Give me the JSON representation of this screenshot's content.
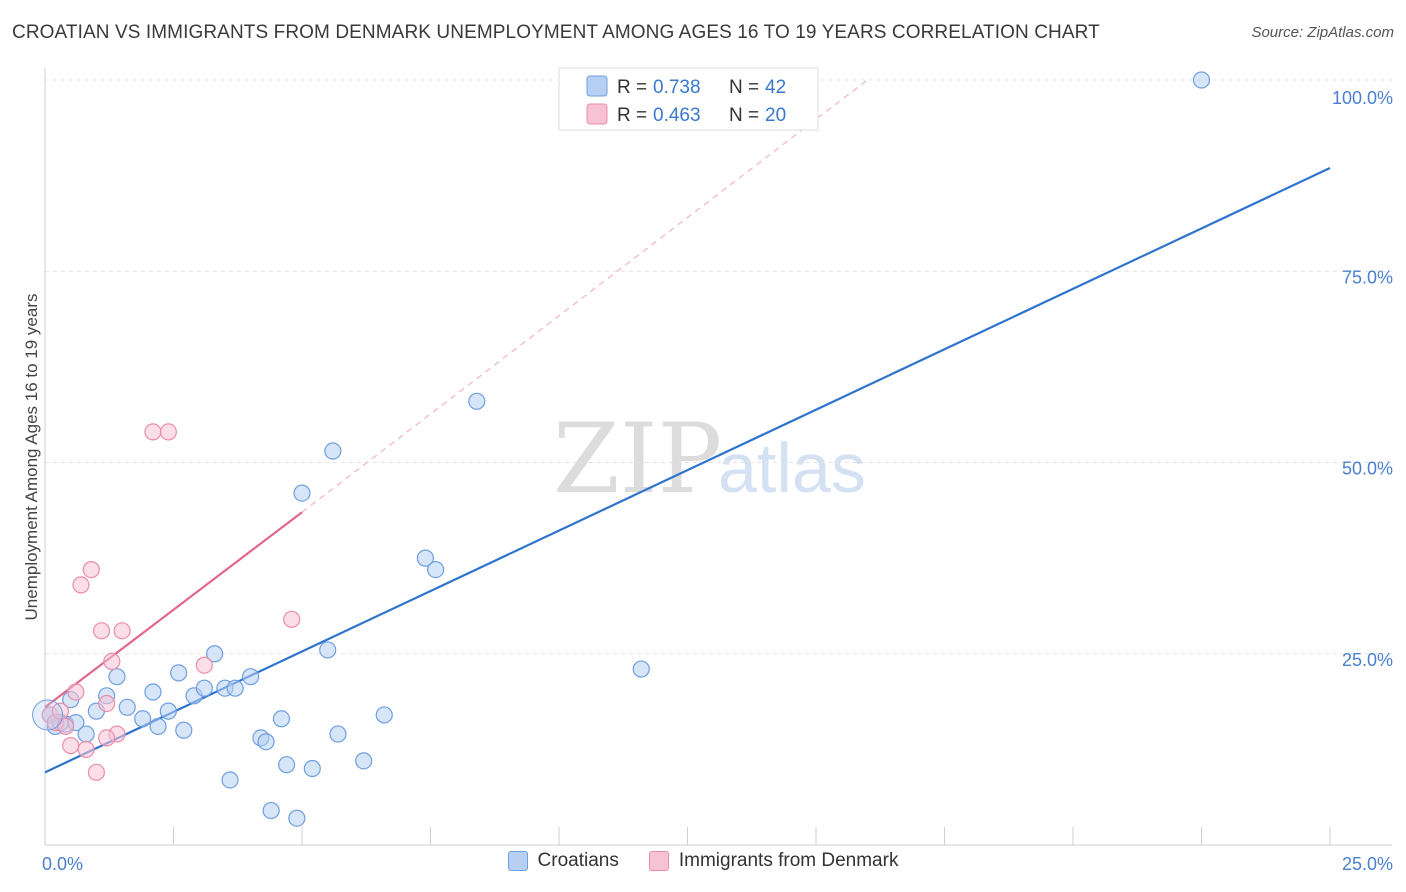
{
  "title": "CROATIAN VS IMMIGRANTS FROM DENMARK UNEMPLOYMENT AMONG AGES 16 TO 19 YEARS CORRELATION CHART",
  "source": "Source: ZipAtlas.com",
  "watermark": {
    "zip": "ZIP",
    "atlas": "atlas"
  },
  "legend": {
    "r_label": "R =",
    "n_label": "N =",
    "rows": [
      {
        "r": "0.738",
        "n": "42"
      },
      {
        "r": "0.463",
        "n": "20"
      }
    ]
  },
  "colors": {
    "croatians_fill": "#b7cff2",
    "croatians_stroke": "#6e9fe0",
    "croatians_line": "#2e74cf",
    "denmark_fill": "#f7c2d3",
    "denmark_stroke": "#eb8cab",
    "denmark_line": "#e2668f"
  },
  "chart_data": {
    "type": "scatter",
    "title": "CROATIAN VS IMMIGRANTS FROM DENMARK UNEMPLOYMENT AMONG AGES 16 TO 19 YEARS CORRELATION CHART",
    "xlabel": "",
    "ylabel": "Unemployment Among Ages 16 to 19 years",
    "xlim": [
      0,
      25
    ],
    "ylim": [
      0,
      100
    ],
    "x_tick_labels": [
      "0.0%",
      "25.0%"
    ],
    "y_tick_labels": [
      "25.0%",
      "50.0%",
      "75.0%",
      "100.0%"
    ],
    "y_ticks": [
      25,
      50,
      75,
      100
    ],
    "series": [
      {
        "name": "Croatians",
        "r": 0.738,
        "n": 42,
        "points": [
          [
            0.1,
            17.0
          ],
          [
            0.2,
            15.5
          ],
          [
            0.4,
            15.8
          ],
          [
            0.5,
            19.0
          ],
          [
            0.6,
            16.0
          ],
          [
            0.8,
            14.5
          ],
          [
            1.0,
            17.5
          ],
          [
            1.2,
            19.5
          ],
          [
            1.4,
            22.0
          ],
          [
            1.6,
            18.0
          ],
          [
            1.9,
            16.5
          ],
          [
            2.1,
            20.0
          ],
          [
            2.2,
            15.5
          ],
          [
            2.4,
            17.5
          ],
          [
            2.6,
            22.5
          ],
          [
            2.7,
            15.0
          ],
          [
            2.9,
            19.5
          ],
          [
            3.1,
            20.5
          ],
          [
            3.3,
            25.0
          ],
          [
            3.5,
            20.5
          ],
          [
            3.6,
            8.5
          ],
          [
            3.7,
            20.5
          ],
          [
            4.0,
            22.0
          ],
          [
            4.2,
            14.0
          ],
          [
            4.3,
            13.5
          ],
          [
            4.4,
            4.5
          ],
          [
            4.6,
            16.5
          ],
          [
            4.7,
            10.5
          ],
          [
            4.9,
            3.5
          ],
          [
            5.0,
            46.0
          ],
          [
            5.2,
            10.0
          ],
          [
            5.5,
            25.5
          ],
          [
            5.6,
            51.5
          ],
          [
            5.7,
            14.5
          ],
          [
            6.2,
            11.0
          ],
          [
            6.6,
            17.0
          ],
          [
            7.4,
            37.5
          ],
          [
            7.6,
            36.0
          ],
          [
            8.4,
            58.0
          ],
          [
            11.6,
            23.0
          ],
          [
            22.5,
            100.0
          ],
          [
            0.3,
            16.0
          ]
        ],
        "trend": {
          "x": [
            0,
            25
          ],
          "y": [
            9.5,
            88.5
          ]
        }
      },
      {
        "name": "Immigrants from Denmark",
        "r": 0.463,
        "n": 20,
        "points": [
          [
            0.1,
            17.0
          ],
          [
            0.2,
            16.0
          ],
          [
            0.4,
            15.5
          ],
          [
            0.6,
            20.0
          ],
          [
            0.7,
            34.0
          ],
          [
            0.8,
            12.5
          ],
          [
            0.9,
            36.0
          ],
          [
            1.0,
            9.5
          ],
          [
            1.1,
            28.0
          ],
          [
            1.2,
            18.5
          ],
          [
            1.3,
            24.0
          ],
          [
            1.4,
            14.5
          ],
          [
            1.5,
            28.0
          ],
          [
            2.1,
            54.0
          ],
          [
            2.4,
            54.0
          ],
          [
            3.1,
            23.5
          ],
          [
            4.8,
            29.5
          ],
          [
            0.3,
            17.5
          ],
          [
            0.5,
            13.0
          ],
          [
            1.2,
            14.0
          ]
        ],
        "trend": {
          "x": [
            0,
            5.0
          ],
          "y": [
            18.0,
            43.5
          ]
        },
        "trend_extension": {
          "x": [
            5.0,
            16.0
          ],
          "y": [
            43.5,
            100.0
          ]
        }
      }
    ],
    "legend": [
      "Croatians",
      "Immigrants from Denmark"
    ],
    "grid": true
  }
}
